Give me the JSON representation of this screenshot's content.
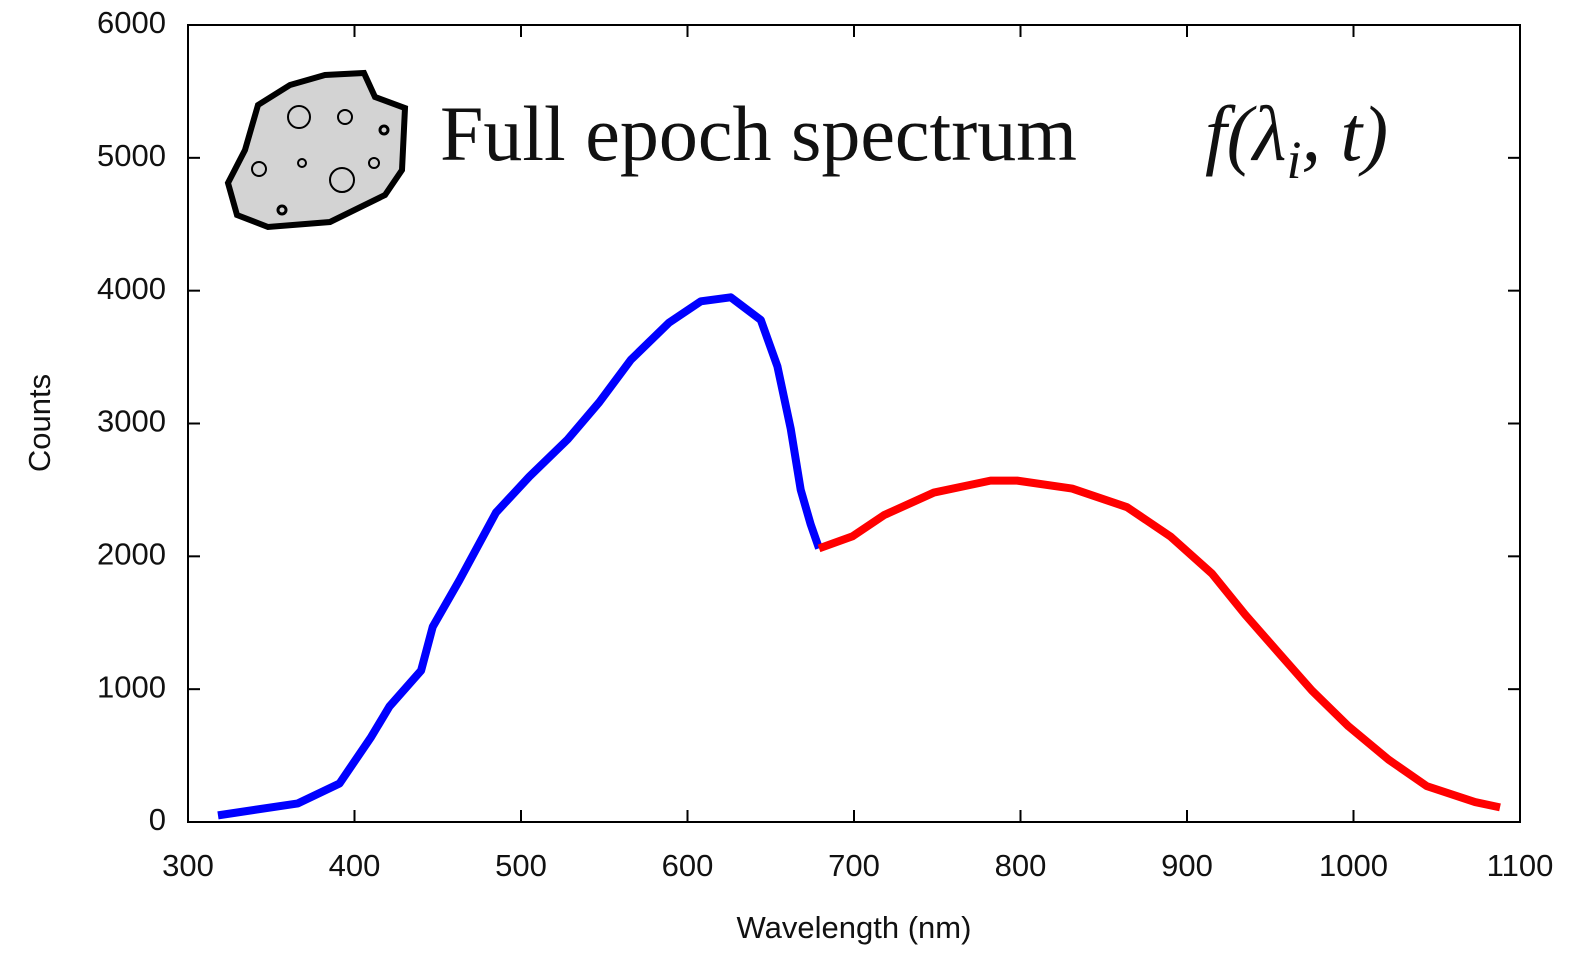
{
  "chart_data": {
    "type": "line",
    "annotation": "Full epoch spectrum",
    "formula": {
      "main": "f(λ",
      "sub": "i",
      "rest": ", t)"
    },
    "xlabel": "Wavelength (nm)",
    "ylabel": "Counts",
    "xlim": [
      300,
      1100
    ],
    "ylim": [
      0,
      6000
    ],
    "xticks": [
      300,
      400,
      500,
      600,
      700,
      800,
      900,
      1000,
      1100
    ],
    "yticks": [
      0,
      1000,
      2000,
      3000,
      4000,
      5000,
      6000
    ],
    "series": [
      {
        "color": "#0000ff",
        "x": [
          318,
          366,
          391,
          410,
          421,
          440,
          447,
          463,
          485,
          505,
          528,
          547,
          566,
          589,
          608,
          626,
          644,
          654,
          662,
          668,
          674,
          679
        ],
        "values": [
          50,
          140,
          290,
          640,
          870,
          1140,
          1470,
          1820,
          2330,
          2600,
          2880,
          3160,
          3480,
          3760,
          3920,
          3950,
          3780,
          3430,
          2960,
          2500,
          2240,
          2060
        ]
      },
      {
        "color": "#ff0000",
        "x": [
          679,
          699,
          718,
          748,
          782,
          798,
          831,
          864,
          890,
          915,
          935,
          956,
          975,
          997,
          1021,
          1044,
          1073,
          1088
        ],
        "values": [
          2060,
          2150,
          2310,
          2480,
          2570,
          2570,
          2510,
          2370,
          2150,
          1870,
          1560,
          1260,
          990,
          720,
          470,
          270,
          150,
          110
        ]
      }
    ]
  }
}
